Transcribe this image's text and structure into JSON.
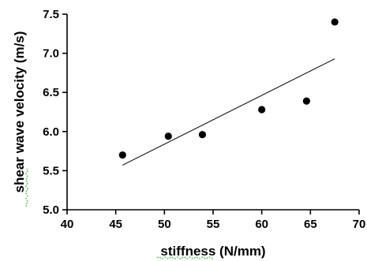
{
  "chart_data": {
    "type": "scatter",
    "title": "",
    "xlabel": "stiffness (N/mm)",
    "ylabel": "shear wave velocity (m/s)",
    "xlim": [
      40,
      70
    ],
    "ylim": [
      5.0,
      7.5
    ],
    "xticks": [
      40,
      45,
      50,
      55,
      60,
      65,
      70
    ],
    "yticks": [
      5.0,
      5.5,
      6.0,
      6.5,
      7.0,
      7.5
    ],
    "xtick_labels": [
      "40",
      "45",
      "50",
      "55",
      "60",
      "65",
      "70"
    ],
    "ytick_labels": [
      "5.0",
      "5.5",
      "6.0",
      "6.5",
      "7.0",
      "7.5"
    ],
    "grid": false,
    "legend": "none",
    "points": [
      {
        "x": 45.7,
        "y": 5.7
      },
      {
        "x": 50.4,
        "y": 5.94
      },
      {
        "x": 53.9,
        "y": 5.96
      },
      {
        "x": 60.0,
        "y": 6.28
      },
      {
        "x": 64.6,
        "y": 6.39
      },
      {
        "x": 67.5,
        "y": 7.4
      }
    ],
    "trendline": {
      "type": "linear",
      "x": [
        45.7,
        67.5
      ],
      "y": [
        5.57,
        6.93
      ]
    },
    "colors": {
      "points": "#000000",
      "line": "#000000",
      "axes": "#000000"
    }
  }
}
